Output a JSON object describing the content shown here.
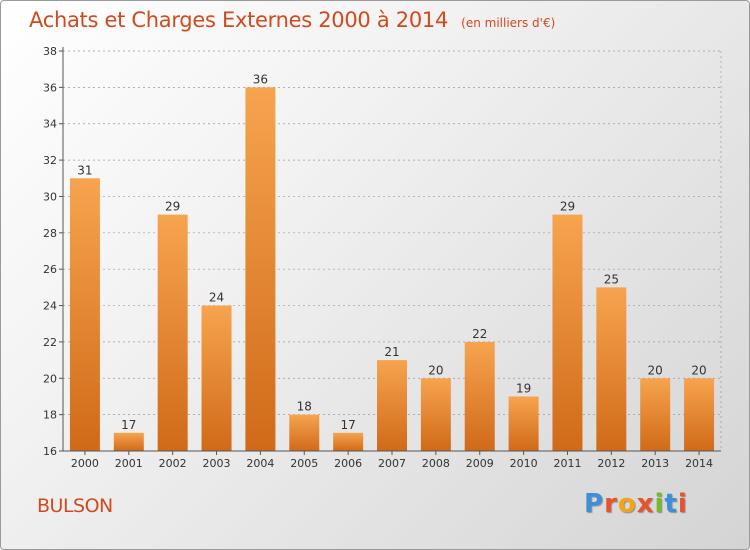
{
  "header": {
    "title": "Achats et Charges Externes 2000 à 2014",
    "unit": "(en milliers d'€)"
  },
  "footer": {
    "commune": "BULSON",
    "brand_letters": [
      "P",
      "r",
      "o",
      "x",
      "i",
      "t",
      "i"
    ],
    "brand_colors": [
      "#3c8fd8",
      "#e8532b",
      "#f2a516",
      "#e8532b",
      "#79b928",
      "#3c8fd8",
      "#e8532b"
    ]
  },
  "colors": {
    "bar_top": "#f7a44f",
    "bar_bottom": "#d06a18",
    "title": "#d04a1e",
    "grid": "#9a9a9a"
  },
  "chart_data": {
    "type": "bar",
    "title": "Achats et Charges Externes 2000 à 2014",
    "subtitle": "(en milliers d'€)",
    "xlabel": "",
    "ylabel": "",
    "categories": [
      "2000",
      "2001",
      "2002",
      "2003",
      "2004",
      "2005",
      "2006",
      "2007",
      "2008",
      "2009",
      "2010",
      "2011",
      "2012",
      "2013",
      "2014"
    ],
    "values": [
      31,
      17,
      29,
      24,
      36,
      18,
      17,
      21,
      20,
      22,
      19,
      29,
      25,
      20,
      20
    ],
    "ylim": [
      16,
      38
    ],
    "yticks": [
      16,
      18,
      20,
      22,
      24,
      26,
      28,
      30,
      32,
      34,
      36,
      38
    ],
    "grid": "horizontal dashed",
    "legend": "none"
  }
}
